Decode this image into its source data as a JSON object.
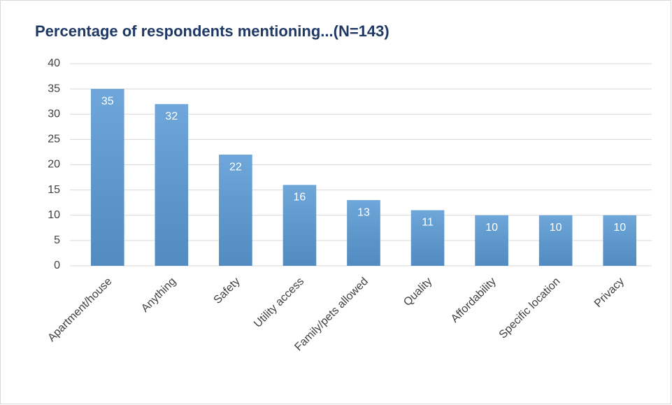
{
  "chart_data": {
    "type": "bar",
    "title": "Percentage of respondents mentioning...(N=143)",
    "categories": [
      "Apartment/house",
      "Anything",
      "Safety",
      "Utility access",
      "Family/pets allowed",
      "Quality",
      "Affordability",
      "Specific location",
      "Privacy"
    ],
    "values": [
      35,
      32,
      22,
      16,
      13,
      11,
      10,
      10,
      10
    ],
    "color": "#5b9bd5",
    "ylim": [
      0,
      40
    ],
    "yticks": [
      0,
      5,
      10,
      15,
      20,
      25,
      30,
      35,
      40
    ],
    "grid": true
  }
}
